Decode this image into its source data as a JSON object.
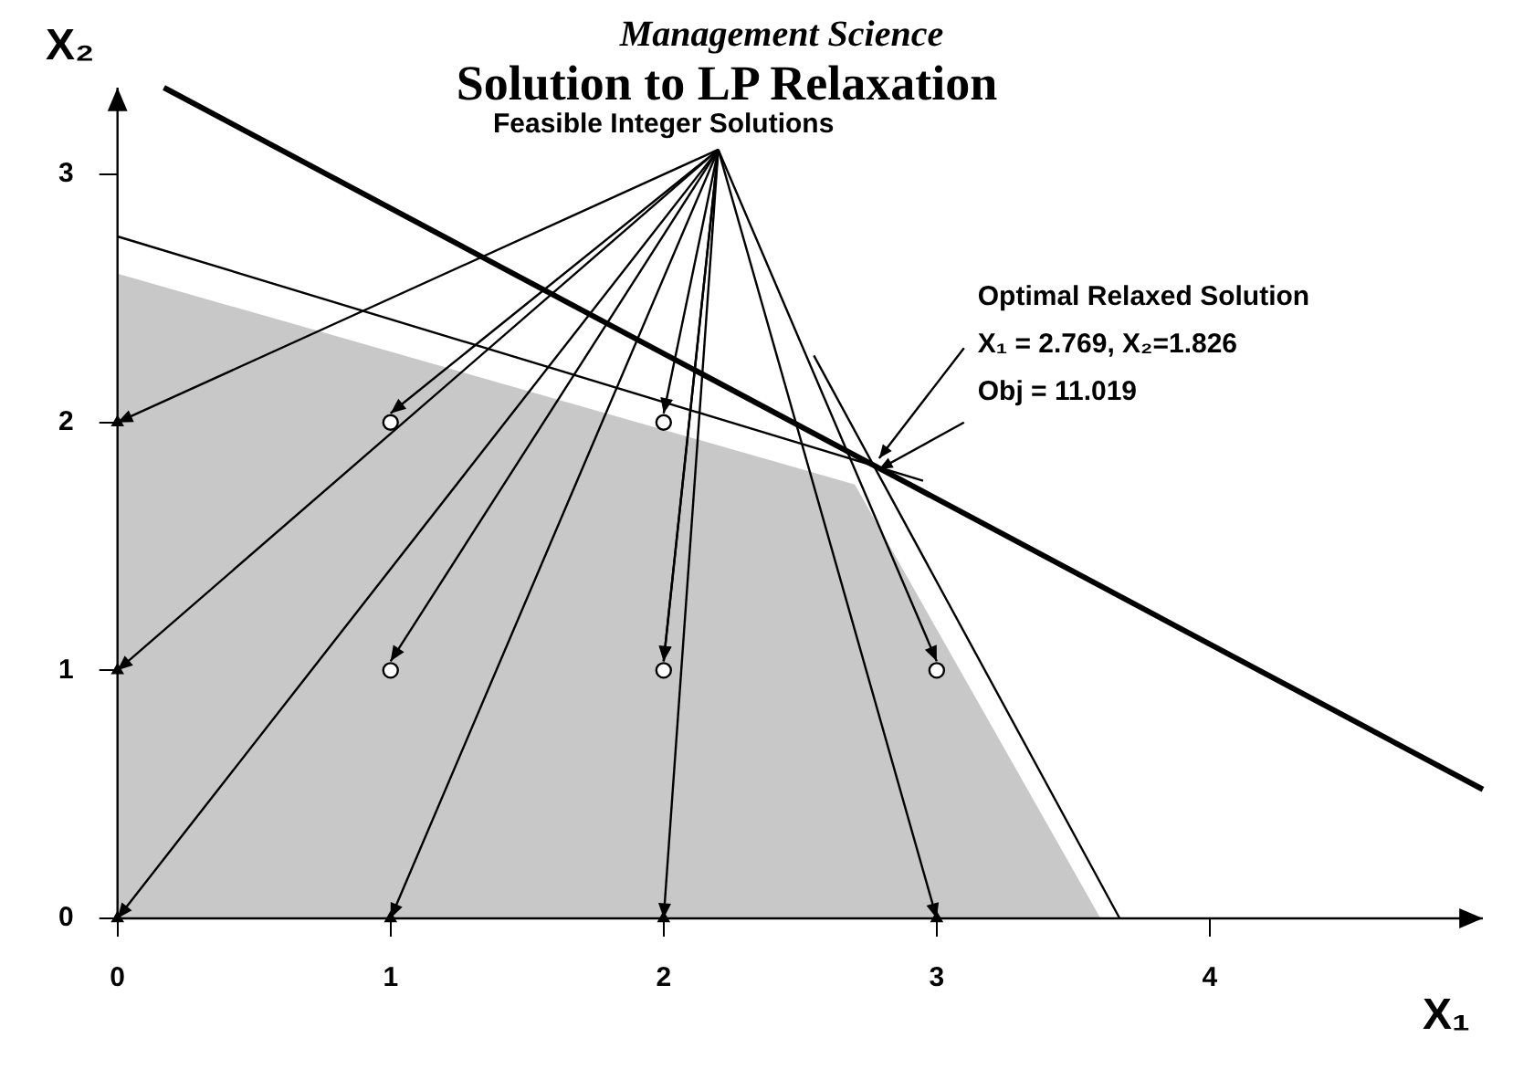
{
  "chart_data": {
    "type": "line",
    "title": "Solution to LP Relaxation",
    "xlabel": "X₁",
    "ylabel": "X₂",
    "annotations": [
      "Management Science",
      {
        "text": "Feasible Integer Solutions",
        "x": 2,
        "y": 1
      },
      "Optimal Relaxed Solution",
      "X₁ = 2.769, X₂=1.826",
      {
        "text": "Obj = 11.019",
        "x": 2.769,
        "y": 1.826
      }
    ],
    "series": [
      {
        "type": "area",
        "color": "#c8c8c8",
        "x": [
          0,
          2.7,
          3.6
        ],
        "values": [
          2.6,
          1.75,
          0
        ],
        "marker": "none"
      },
      {
        "color": "#000000",
        "x": [
          0,
          2.95
        ],
        "values": [
          2.75,
          1.765
        ],
        "marker": "none"
      },
      {
        "color": "#000000",
        "x": [
          2.55,
          3.67
        ],
        "values": [
          2.27,
          0
        ],
        "marker": "none"
      },
      {
        "color": "#000000",
        "x": [
          0.17,
          5
        ],
        "values": [
          3.35,
          0.52
        ],
        "marker": "none"
      },
      {
        "type": "scatter",
        "color": "#000000",
        "x": [
          1,
          2,
          1,
          2,
          3
        ],
        "values": [
          2,
          2,
          1,
          1,
          1
        ],
        "marker": "circle"
      },
      {
        "type": "scatter",
        "color": "#000000",
        "x": [
          0,
          0,
          0,
          1,
          2,
          3
        ],
        "values": [
          2,
          1,
          0,
          0,
          0,
          0
        ],
        "marker": "triangle"
      }
    ],
    "xlim": [
      0,
      5
    ],
    "ylim": [
      0,
      3.35
    ],
    "xticks": [
      0,
      1,
      2,
      3,
      4
    ],
    "yticks": [
      0,
      1,
      2,
      3
    ],
    "grid": false,
    "legend": false
  }
}
